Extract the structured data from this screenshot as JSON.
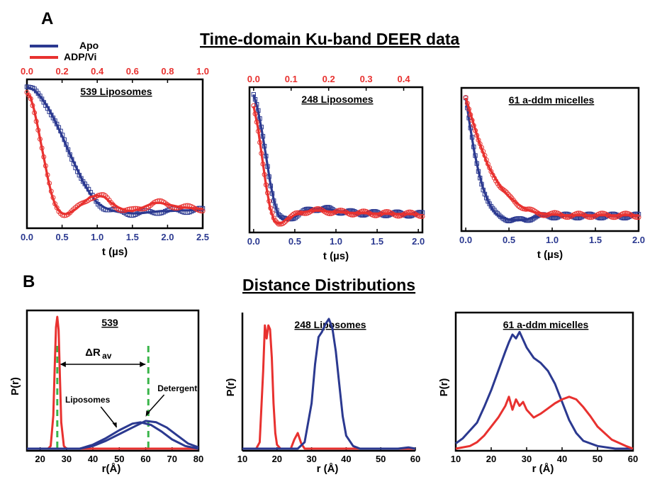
{
  "panel_a_label": "A",
  "panel_b_label": "B",
  "heading_a": "Time-domain Ku-band DEER data",
  "heading_b": "Distance Distributions",
  "colors": {
    "apo": "#2b3990",
    "adp": "#e8312f",
    "guide": "#3ab54a"
  },
  "legend": [
    {
      "name": "Apo",
      "color": "#2b3990"
    },
    {
      "name": "ADP/Vi",
      "color": "#e8312f"
    }
  ],
  "chart_data": [
    {
      "type": "scatter",
      "title": "539 Liposomes",
      "xlabel": "t (µs)",
      "xlim": [
        0,
        2.5
      ],
      "xticks": [
        0.0,
        0.5,
        1.0,
        1.5,
        2.0,
        2.5
      ],
      "xticklabels": [
        "0.0",
        "0.5",
        "1.0",
        "1.5",
        "2.0",
        "2.5"
      ],
      "top_xlim": [
        0,
        1.0
      ],
      "top_xticks": [
        0.0,
        0.2,
        0.4,
        0.6,
        0.8,
        1.0
      ],
      "top_xticklabels": [
        "0.0",
        "0.2",
        "0.4",
        "0.6",
        "0.8",
        "1.0"
      ],
      "series": [
        {
          "name": "Apo",
          "model": {
            "y0": 1.0,
            "yinf": 0.17,
            "decay": 2.2,
            "freq": 0.9,
            "damp": 1.6,
            "amp": 0.05,
            "phase": 0.6
          },
          "fit": [
            [
              0.0,
              1.0
            ],
            [
              0.1,
              0.98
            ],
            [
              0.2,
              0.93
            ],
            [
              0.3,
              0.86
            ],
            [
              0.4,
              0.77
            ],
            [
              0.5,
              0.67
            ],
            [
              0.6,
              0.56
            ],
            [
              0.7,
              0.46
            ],
            [
              0.8,
              0.36
            ],
            [
              0.9,
              0.28
            ],
            [
              1.0,
              0.22
            ],
            [
              1.1,
              0.19
            ],
            [
              1.2,
              0.17
            ],
            [
              1.3,
              0.16
            ],
            [
              1.4,
              0.155
            ],
            [
              1.5,
              0.15
            ],
            [
              1.6,
              0.15
            ],
            [
              1.7,
              0.155
            ],
            [
              1.8,
              0.16
            ],
            [
              1.9,
              0.165
            ],
            [
              2.0,
              0.165
            ],
            [
              2.2,
              0.17
            ],
            [
              2.5,
              0.17
            ]
          ]
        },
        {
          "name": "ADP/Vi",
          "model": {
            "y0": 0.96,
            "yinf": 0.22,
            "decay": 5.0,
            "freq": 1.15,
            "damp": 1.2,
            "amp": 0.12,
            "phase": 0.0
          },
          "fit": [
            [
              0.0,
              0.96
            ],
            [
              0.05,
              0.93
            ],
            [
              0.1,
              0.85
            ],
            [
              0.15,
              0.74
            ],
            [
              0.2,
              0.62
            ],
            [
              0.25,
              0.5
            ],
            [
              0.3,
              0.38
            ],
            [
              0.35,
              0.28
            ],
            [
              0.4,
              0.21
            ],
            [
              0.45,
              0.17
            ],
            [
              0.5,
              0.15
            ],
            [
              0.55,
              0.145
            ],
            [
              0.6,
              0.15
            ],
            [
              0.7,
              0.18
            ],
            [
              0.8,
              0.22
            ],
            [
              0.9,
              0.26
            ],
            [
              1.0,
              0.27
            ],
            [
              1.1,
              0.26
            ],
            [
              1.2,
              0.22
            ],
            [
              1.3,
              0.19
            ],
            [
              1.4,
              0.17
            ],
            [
              1.5,
              0.165
            ],
            [
              1.6,
              0.18
            ],
            [
              1.7,
              0.2
            ],
            [
              1.8,
              0.22
            ],
            [
              1.9,
              0.22
            ],
            [
              2.0,
              0.21
            ],
            [
              2.2,
              0.19
            ],
            [
              2.5,
              0.18
            ]
          ]
        }
      ]
    },
    {
      "type": "scatter",
      "title": "248 Liposomes",
      "xlabel": "t (µs)",
      "xlim": [
        -0.05,
        2.05
      ],
      "xticks": [
        0.0,
        0.5,
        1.0,
        1.5,
        2.0
      ],
      "xticklabels": [
        "0.0",
        "0.5",
        "1.0",
        "1.5",
        "2.0"
      ],
      "top_xlim": [
        -0.011,
        0.45
      ],
      "top_xticks": [
        0.0,
        0.1,
        0.2,
        0.3,
        0.4
      ],
      "top_xticklabels": [
        "0.0",
        "0.1",
        "0.2",
        "0.3",
        "0.4"
      ],
      "series": [
        {
          "name": "Apo",
          "fit": [
            [
              0.0,
              1.0
            ],
            [
              0.05,
              0.9
            ],
            [
              0.1,
              0.75
            ],
            [
              0.15,
              0.58
            ],
            [
              0.2,
              0.4
            ],
            [
              0.25,
              0.26
            ],
            [
              0.3,
              0.17
            ],
            [
              0.35,
              0.14
            ],
            [
              0.4,
              0.14
            ],
            [
              0.5,
              0.16
            ],
            [
              0.6,
              0.19
            ],
            [
              0.7,
              0.21
            ],
            [
              0.8,
              0.215
            ],
            [
              0.9,
              0.21
            ],
            [
              1.0,
              0.2
            ],
            [
              1.2,
              0.185
            ],
            [
              1.5,
              0.18
            ],
            [
              2.0,
              0.175
            ]
          ]
        },
        {
          "name": "ADP/Vi",
          "fit": [
            [
              0.0,
              0.92
            ],
            [
              0.05,
              0.78
            ],
            [
              0.1,
              0.58
            ],
            [
              0.15,
              0.38
            ],
            [
              0.2,
              0.22
            ],
            [
              0.25,
              0.13
            ],
            [
              0.3,
              0.11
            ],
            [
              0.35,
              0.12
            ],
            [
              0.4,
              0.14
            ],
            [
              0.5,
              0.17
            ],
            [
              0.6,
              0.19
            ],
            [
              0.7,
              0.2
            ],
            [
              0.8,
              0.2
            ],
            [
              1.0,
              0.19
            ],
            [
              1.2,
              0.185
            ],
            [
              1.5,
              0.18
            ],
            [
              2.0,
              0.175
            ]
          ]
        }
      ]
    },
    {
      "type": "scatter",
      "title": "61 a-ddm micelles",
      "xlabel": "t (µs)",
      "xlim": [
        -0.05,
        2.0
      ],
      "xticks": [
        0.0,
        0.5,
        1.0,
        1.5,
        2.0
      ],
      "xticklabels": [
        "0.0",
        "0.5",
        "1.0",
        "1.5",
        "2.0"
      ],
      "series": [
        {
          "name": "Apo",
          "fit": [
            [
              0.0,
              0.98
            ],
            [
              0.05,
              0.78
            ],
            [
              0.1,
              0.6
            ],
            [
              0.15,
              0.46
            ],
            [
              0.2,
              0.35
            ],
            [
              0.25,
              0.27
            ],
            [
              0.3,
              0.21
            ],
            [
              0.35,
              0.17
            ],
            [
              0.4,
              0.15
            ],
            [
              0.5,
              0.13
            ],
            [
              0.6,
              0.125
            ],
            [
              0.7,
              0.13
            ],
            [
              0.8,
              0.15
            ],
            [
              1.0,
              0.155
            ],
            [
              1.5,
              0.155
            ],
            [
              2.0,
              0.155
            ]
          ]
        },
        {
          "name": "ADP/Vi",
          "fit": [
            [
              0.0,
              0.98
            ],
            [
              0.05,
              0.88
            ],
            [
              0.1,
              0.78
            ],
            [
              0.15,
              0.68
            ],
            [
              0.2,
              0.6
            ],
            [
              0.25,
              0.52
            ],
            [
              0.3,
              0.46
            ],
            [
              0.4,
              0.36
            ],
            [
              0.5,
              0.29
            ],
            [
              0.6,
              0.24
            ],
            [
              0.7,
              0.2
            ],
            [
              0.8,
              0.18
            ],
            [
              1.0,
              0.165
            ],
            [
              1.2,
              0.16
            ],
            [
              1.5,
              0.16
            ],
            [
              2.0,
              0.16
            ]
          ]
        }
      ]
    },
    {
      "type": "line",
      "title": "539",
      "xlabel": "r(Å)",
      "ylabel": "P(r)",
      "xlim": [
        15,
        80
      ],
      "xticks": [
        20,
        30,
        40,
        50,
        60,
        70,
        80
      ],
      "annotations": [
        "ΔR",
        "av",
        "Liposomes",
        "Detergent"
      ],
      "guides": [
        26.5,
        61
      ],
      "series": [
        {
          "name": "ADP/Vi",
          "x": [
            15,
            23,
            24,
            25,
            25.5,
            26,
            26.5,
            27,
            27.5,
            28,
            29,
            30,
            80
          ],
          "y": [
            0.0,
            0.0,
            0.02,
            0.25,
            0.6,
            0.92,
            1.0,
            0.9,
            0.55,
            0.2,
            0.02,
            0.0,
            0.0
          ]
        },
        {
          "name": "Apo (Liposomes)",
          "x": [
            15,
            35,
            40,
            45,
            50,
            55,
            58,
            62,
            66,
            70,
            75,
            80
          ],
          "y": [
            0.0,
            0.0,
            0.03,
            0.08,
            0.14,
            0.19,
            0.2,
            0.18,
            0.13,
            0.07,
            0.02,
            0.0
          ]
        },
        {
          "name": "Apo (Detergent)",
          "x": [
            15,
            35,
            40,
            45,
            50,
            55,
            60,
            64,
            68,
            72,
            76,
            80
          ],
          "y": [
            0.0,
            0.0,
            0.02,
            0.06,
            0.11,
            0.16,
            0.21,
            0.2,
            0.16,
            0.1,
            0.04,
            0.01
          ]
        }
      ]
    },
    {
      "type": "line",
      "title": "248 Liposomes",
      "xlabel": "r (Å)",
      "ylabel": "P(r)",
      "xlim": [
        10,
        60
      ],
      "xticks": [
        10,
        20,
        30,
        40,
        50,
        60
      ],
      "series": [
        {
          "name": "ADP/Vi",
          "x": [
            10,
            14,
            15,
            16,
            16.5,
            17,
            17.5,
            18,
            18.5,
            19,
            19.5,
            20,
            21,
            22,
            24,
            25,
            26,
            27,
            28,
            60
          ],
          "y": [
            0.0,
            0.0,
            0.05,
            0.6,
            0.95,
            0.85,
            0.95,
            0.92,
            0.7,
            0.35,
            0.12,
            0.03,
            0.0,
            0.0,
            0.0,
            0.07,
            0.12,
            0.04,
            0.0,
            0.0
          ]
        },
        {
          "name": "Apo",
          "x": [
            10,
            26,
            28,
            30,
            31,
            32,
            33,
            34,
            35,
            36,
            37,
            38,
            39,
            40,
            42,
            44,
            50,
            55,
            58,
            60
          ],
          "y": [
            0.0,
            0.0,
            0.05,
            0.35,
            0.65,
            0.86,
            0.9,
            0.96,
            1.0,
            0.93,
            0.75,
            0.5,
            0.25,
            0.1,
            0.02,
            0.0,
            0.0,
            0.0,
            0.01,
            0.0
          ]
        }
      ]
    },
    {
      "type": "line",
      "title": "61 a-ddm micelles",
      "xlabel": "r (Å)",
      "ylabel": "P(r)",
      "xlim": [
        10,
        60
      ],
      "xticks": [
        10,
        20,
        30,
        40,
        50,
        60
      ],
      "series": [
        {
          "name": "Apo",
          "x": [
            10,
            12,
            14,
            16,
            18,
            20,
            22,
            24,
            25,
            26,
            27,
            28,
            29,
            30,
            32,
            34,
            36,
            38,
            40,
            42,
            44,
            46,
            50,
            55,
            60
          ],
          "y": [
            0.04,
            0.08,
            0.14,
            0.2,
            0.32,
            0.45,
            0.6,
            0.75,
            0.82,
            0.88,
            0.85,
            0.9,
            0.84,
            0.78,
            0.7,
            0.66,
            0.6,
            0.5,
            0.36,
            0.22,
            0.12,
            0.06,
            0.02,
            0.0,
            0.0
          ]
        },
        {
          "name": "ADP/Vi",
          "x": [
            10,
            14,
            16,
            18,
            20,
            22,
            24,
            25,
            26,
            27,
            28,
            29,
            30,
            32,
            34,
            36,
            38,
            40,
            42,
            44,
            46,
            48,
            50,
            54,
            58,
            60
          ],
          "y": [
            0.0,
            0.02,
            0.05,
            0.1,
            0.17,
            0.24,
            0.33,
            0.4,
            0.3,
            0.38,
            0.33,
            0.36,
            0.3,
            0.24,
            0.27,
            0.31,
            0.35,
            0.38,
            0.4,
            0.38,
            0.32,
            0.25,
            0.17,
            0.07,
            0.02,
            0.0
          ]
        }
      ]
    }
  ]
}
